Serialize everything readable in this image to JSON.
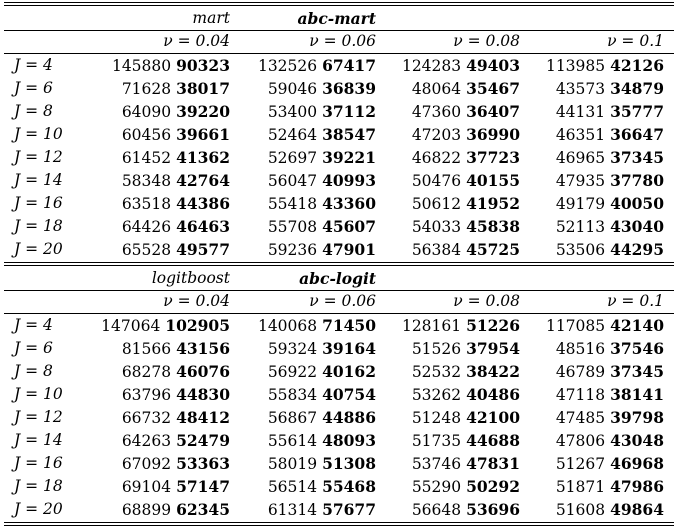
{
  "sections": [
    {
      "method_a": "mart",
      "method_b": "abc-mart",
      "nu_headers": [
        "ν = 0.04",
        "ν = 0.06",
        "ν = 0.08",
        "ν = 0.1"
      ],
      "rows": [
        {
          "J": "J = 4",
          "cells": [
            [
              "145880",
              "90323"
            ],
            [
              "132526",
              "67417"
            ],
            [
              "124283",
              "49403"
            ],
            [
              "113985",
              "42126"
            ]
          ]
        },
        {
          "J": "J = 6",
          "cells": [
            [
              "71628",
              "38017"
            ],
            [
              "59046",
              "36839"
            ],
            [
              "48064",
              "35467"
            ],
            [
              "43573",
              "34879"
            ]
          ]
        },
        {
          "J": "J = 8",
          "cells": [
            [
              "64090",
              "39220"
            ],
            [
              "53400",
              "37112"
            ],
            [
              "47360",
              "36407"
            ],
            [
              "44131",
              "35777"
            ]
          ]
        },
        {
          "J": "J = 10",
          "cells": [
            [
              "60456",
              "39661"
            ],
            [
              "52464",
              "38547"
            ],
            [
              "47203",
              "36990"
            ],
            [
              "46351",
              "36647"
            ]
          ]
        },
        {
          "J": "J = 12",
          "cells": [
            [
              "61452",
              "41362"
            ],
            [
              "52697",
              "39221"
            ],
            [
              "46822",
              "37723"
            ],
            [
              "46965",
              "37345"
            ]
          ]
        },
        {
          "J": "J = 14",
          "cells": [
            [
              "58348",
              "42764"
            ],
            [
              "56047",
              "40993"
            ],
            [
              "50476",
              "40155"
            ],
            [
              "47935",
              "37780"
            ]
          ]
        },
        {
          "J": "J = 16",
          "cells": [
            [
              "63518",
              "44386"
            ],
            [
              "55418",
              "43360"
            ],
            [
              "50612",
              "41952"
            ],
            [
              "49179",
              "40050"
            ]
          ]
        },
        {
          "J": "J = 18",
          "cells": [
            [
              "64426",
              "46463"
            ],
            [
              "55708",
              "45607"
            ],
            [
              "54033",
              "45838"
            ],
            [
              "52113",
              "43040"
            ]
          ]
        },
        {
          "J": "J = 20",
          "cells": [
            [
              "65528",
              "49577"
            ],
            [
              "59236",
              "47901"
            ],
            [
              "56384",
              "45725"
            ],
            [
              "53506",
              "44295"
            ]
          ]
        }
      ]
    },
    {
      "method_a": "logitboost",
      "method_b": "abc-logit",
      "nu_headers": [
        "ν = 0.04",
        "ν = 0.06",
        "ν = 0.08",
        "ν = 0.1"
      ],
      "rows": [
        {
          "J": "J = 4",
          "cells": [
            [
              "147064",
              "102905"
            ],
            [
              "140068",
              "71450"
            ],
            [
              "128161",
              "51226"
            ],
            [
              "117085",
              "42140"
            ]
          ]
        },
        {
          "J": "J = 6",
          "cells": [
            [
              "81566",
              "43156"
            ],
            [
              "59324",
              "39164"
            ],
            [
              "51526",
              "37954"
            ],
            [
              "48516",
              "37546"
            ]
          ]
        },
        {
          "J": "J = 8",
          "cells": [
            [
              "68278",
              "46076"
            ],
            [
              "56922",
              "40162"
            ],
            [
              "52532",
              "38422"
            ],
            [
              "46789",
              "37345"
            ]
          ]
        },
        {
          "J": "J = 10",
          "cells": [
            [
              "63796",
              "44830"
            ],
            [
              "55834",
              "40754"
            ],
            [
              "53262",
              "40486"
            ],
            [
              "47118",
              "38141"
            ]
          ]
        },
        {
          "J": "J = 12",
          "cells": [
            [
              "66732",
              "48412"
            ],
            [
              "56867",
              "44886"
            ],
            [
              "51248",
              "42100"
            ],
            [
              "47485",
              "39798"
            ]
          ]
        },
        {
          "J": "J = 14",
          "cells": [
            [
              "64263",
              "52479"
            ],
            [
              "55614",
              "48093"
            ],
            [
              "51735",
              "44688"
            ],
            [
              "47806",
              "43048"
            ]
          ]
        },
        {
          "J": "J = 16",
          "cells": [
            [
              "67092",
              "53363"
            ],
            [
              "58019",
              "51308"
            ],
            [
              "53746",
              "47831"
            ],
            [
              "51267",
              "46968"
            ]
          ]
        },
        {
          "J": "J = 18",
          "cells": [
            [
              "69104",
              "57147"
            ],
            [
              "56514",
              "55468"
            ],
            [
              "55290",
              "50292"
            ],
            [
              "51871",
              "47986"
            ]
          ]
        },
        {
          "J": "J = 20",
          "cells": [
            [
              "68899",
              "62345"
            ],
            [
              "61314",
              "57677"
            ],
            [
              "56648",
              "53696"
            ],
            [
              "51608",
              "49864"
            ]
          ]
        }
      ]
    }
  ]
}
